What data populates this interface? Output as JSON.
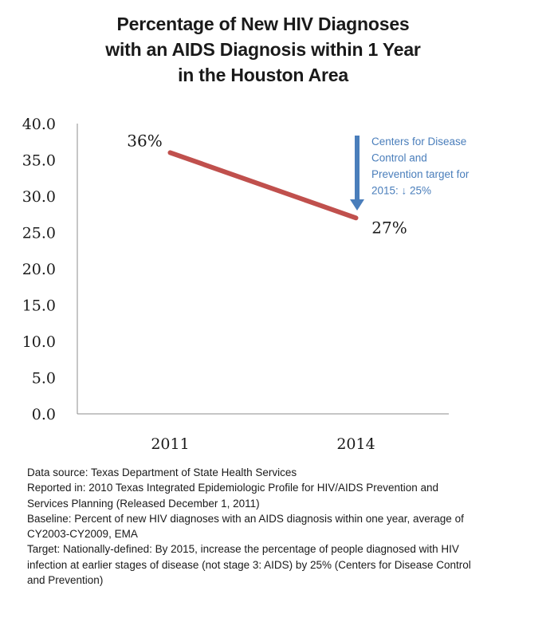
{
  "chart_data": {
    "type": "line",
    "title_lines": [
      "Percentage of New HIV Diagnoses",
      "with an AIDS Diagnosis within 1 Year",
      "in the Houston Area"
    ],
    "categories": [
      "2011",
      "2014"
    ],
    "values": [
      36,
      27
    ],
    "point_labels": [
      "36%",
      "27%"
    ],
    "y_ticks": [
      "0.0",
      "5.0",
      "10.0",
      "15.0",
      "20.0",
      "25.0",
      "30.0",
      "35.0",
      "40.0"
    ],
    "ylim": [
      0,
      40
    ],
    "grid": false,
    "line_color": "#c0504d",
    "annotation": {
      "lines": [
        "Centers for Disease",
        "Control and",
        "Prevention target for",
        "2015: ↓ 25%"
      ],
      "color": "#4a7ebb",
      "arrow": "down"
    }
  },
  "notes": [
    "Data source: Texas Department of State Health Services",
    "Reported in:  2010 Texas Integrated Epidemiologic Profile for HIV/AIDS Prevention and",
    "Services Planning (Released December 1, 2011)",
    "Baseline: Percent of new HIV diagnoses with an AIDS diagnosis within one year, average of",
    "CY2003-CY2009, EMA",
    "Target: Nationally-defined: By 2015, increase the percentage of people diagnosed with HIV",
    "infection at earlier stages of disease (not stage 3: AIDS) by 25% (Centers for Disease Control",
    "and Prevention)"
  ]
}
